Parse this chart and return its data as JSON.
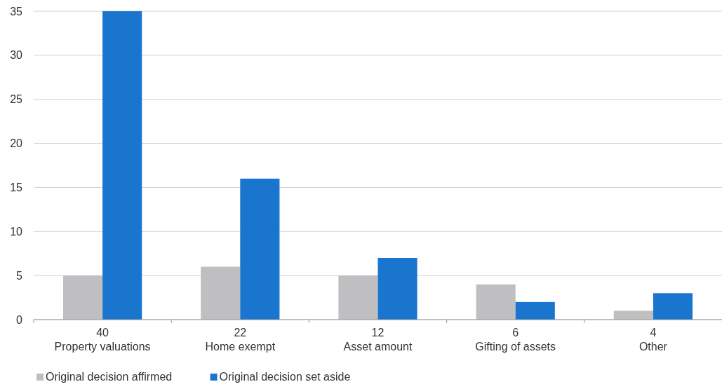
{
  "chart_data": {
    "type": "bar",
    "categories": [
      "40\nProperty valuations",
      "22\nHome exempt",
      "12\nAsset amount",
      "6\nGifting of assets",
      "4\nOther"
    ],
    "series": [
      {
        "name": "Original decision affirmed",
        "color": "#bfbfc1",
        "values": [
          5,
          6,
          5,
          4,
          1
        ]
      },
      {
        "name": "Original decision set aside",
        "color": "#1a75cf",
        "values": [
          35,
          16,
          7,
          2,
          3
        ]
      }
    ],
    "ylim": [
      0,
      35
    ],
    "yticks": [
      0,
      5,
      10,
      15,
      20,
      25,
      30,
      35
    ],
    "grid": "y",
    "legend": "bottom left"
  }
}
